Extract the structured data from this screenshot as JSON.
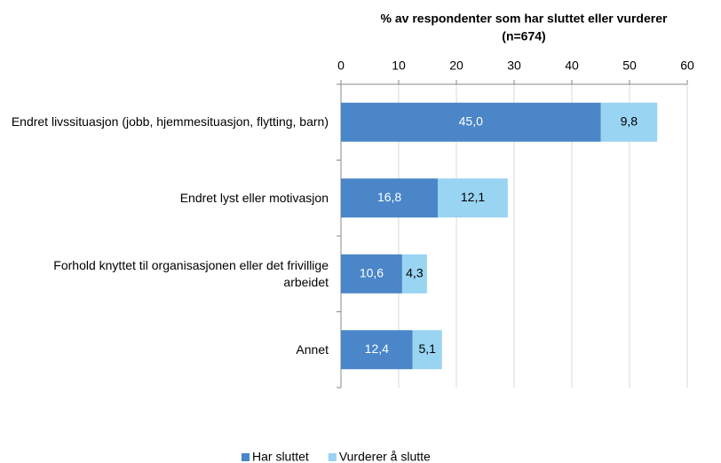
{
  "chart_data": {
    "type": "stacked-barh",
    "title": [
      "% av respondenter som har sluttet eller vurderer",
      "(n=674)"
    ],
    "categories": [
      "Endret livssituasjon (jobb, hjemmesituasjon, flytting, barn)",
      "Endret lyst eller motivasjon",
      "Forhold knyttet til organisasjonen eller det frivillige arbeidet",
      "Annet"
    ],
    "series": [
      {
        "name": "Har sluttet",
        "color": "#4a86c8",
        "values": [
          45.0,
          16.8,
          10.6,
          12.4
        ],
        "value_labels": [
          "45,0",
          "16,8",
          "10,6",
          "12,4"
        ]
      },
      {
        "name": "Vurderer å slutte",
        "color": "#99d4f2",
        "values": [
          9.8,
          12.1,
          4.3,
          5.1
        ],
        "value_labels": [
          "9,8",
          "12,1",
          "4,3",
          "5,1"
        ]
      }
    ],
    "xlim": [
      0,
      60
    ],
    "xticks": [
      0,
      10,
      20,
      30,
      40,
      50,
      60
    ],
    "grid": true,
    "legend": "bottom"
  }
}
